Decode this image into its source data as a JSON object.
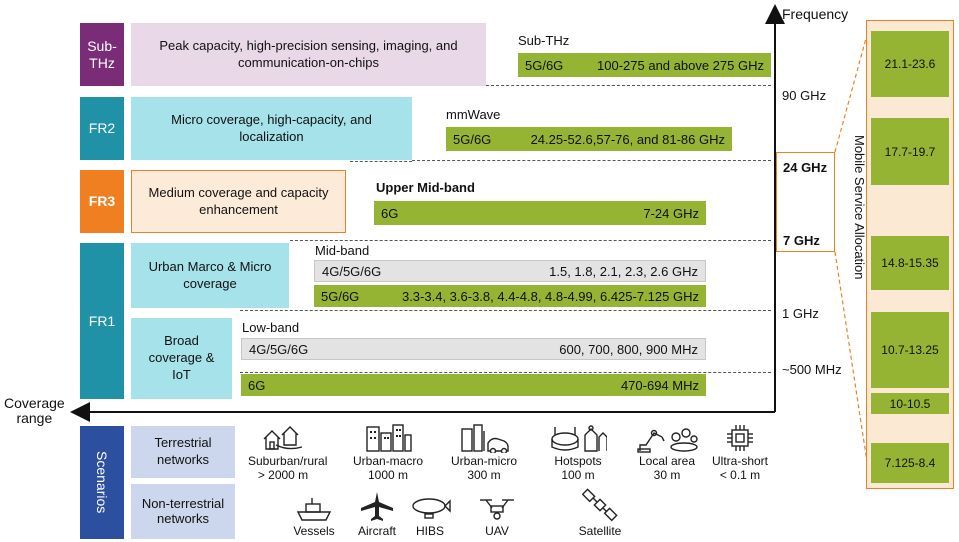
{
  "axes": {
    "frequency": "Frequency",
    "coverage": "Coverage\nrange"
  },
  "bands": {
    "subthz": {
      "name": "Sub-\nTHz",
      "desc": "Peak capacity, high-precision sensing, imaging, and communication-on-chips",
      "range_title": "Sub-THz",
      "tech": "5G/6G",
      "freq": "100-275 and above 275 GHz",
      "color": "#7b2c78"
    },
    "fr2": {
      "name": "FR2",
      "desc": "Micro coverage, high-capacity, and localization",
      "range_title": "mmWave",
      "tech": "5G/6G",
      "freq": "24.25-52.6,57-76, and 81-86 GHz",
      "color": "#1f92a8"
    },
    "fr3": {
      "name": "FR3",
      "desc": "Medium coverage and capacity enhancement",
      "range_title": "Upper Mid-band",
      "tech": "6G",
      "freq": "7-24 GHz",
      "color": "#f07f22"
    },
    "fr1": {
      "name": "FR1",
      "urban_desc": "Urban Marco & Micro coverage",
      "broad_desc": "Broad coverage & IoT",
      "midband_title": "Mid-band",
      "midband_grey_tech": "4G/5G/6G",
      "midband_grey_freq": "1.5, 1.8, 2.1, 2.3, 2.6 GHz",
      "midband_green_tech": "5G/6G",
      "midband_green_freq": "3.3-3.4, 3.6-3.8, 4.4-4.8, 4.8-4.99, 6.425-7.125 GHz",
      "lowband_title": "Low-band",
      "lowband_grey_tech": "4G/5G/6G",
      "lowband_grey_freq": "600, 700, 800, 900 MHz",
      "lowband_green_tech": "6G",
      "lowband_green_freq": "470-694 MHz",
      "color": "#1f92a8"
    }
  },
  "freq_labels": [
    "90 GHz",
    "24 GHz",
    "7 GHz",
    "1 GHz",
    "~500 MHz"
  ],
  "allocation": {
    "title": "Mobile Service Allocation",
    "bands": [
      "21.1-23.6",
      "17.7-19.7",
      "14.8-15.35",
      "10.7-13.25",
      "10-10.5",
      "7.125-8.4"
    ]
  },
  "scenarios": {
    "title": "Scenarios",
    "terrestrial_label": "Terrestrial networks",
    "nonterrestrial_label": "Non-terrestrial networks",
    "terrestrial": [
      {
        "name": "Suburban/rural",
        "range": "> 2000 m",
        "icon": "houses-icon"
      },
      {
        "name": "Urban-macro",
        "range": "1000 m",
        "icon": "city-buildings-icon"
      },
      {
        "name": "Urban-micro",
        "range": "300 m",
        "icon": "street-icon"
      },
      {
        "name": "Hotspots",
        "range": "100 m",
        "icon": "stadium-icon"
      },
      {
        "name": "Local area",
        "range": "30 m",
        "icon": "factory-icon"
      },
      {
        "name": "Ultra-short",
        "range": "< 0.1 m",
        "icon": "chip-icon"
      }
    ],
    "nonterrestrial": [
      {
        "name": "Vessels",
        "icon": "ship-icon"
      },
      {
        "name": "Aircraft",
        "icon": "aircraft-icon"
      },
      {
        "name": "HIBS",
        "icon": "airship-icon"
      },
      {
        "name": "UAV",
        "icon": "drone-icon"
      },
      {
        "name": "Satellite",
        "icon": "satellite-icon"
      }
    ]
  }
}
